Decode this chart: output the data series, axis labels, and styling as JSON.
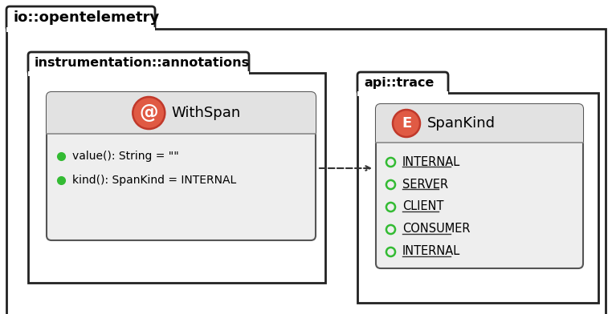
{
  "bg_color": "#ffffff",
  "border_color": "#222222",
  "outer_package_label": "io::opentelemetry",
  "inner_package1_label": "instrumentation::annotations",
  "inner_package2_label": "api::trace",
  "withspan_class_name": "WithSpan",
  "withspan_icon": "@",
  "withspan_methods": [
    "value(): String = \"\"",
    "kind(): SpanKind = INTERNAL"
  ],
  "spankind_class_name": "SpanKind",
  "spankind_icon": "E",
  "spankind_values": [
    "INTERNAL",
    "SERVER",
    "CLIENT",
    "CONSUMER",
    "INTERNAL"
  ],
  "icon_bg_color": "#e05a44",
  "icon_border_color": "#c0392b",
  "icon_text_color": "#ffffff",
  "class_bg_color": "#eeeeee",
  "class_header_bg": "#e8e8e8",
  "method_dot_color": "#33bb33",
  "enum_dot_color": "#33bb33",
  "arrow_color": "#333333",
  "pkg_bg": "#ffffff",
  "pkg_border": "#222222"
}
